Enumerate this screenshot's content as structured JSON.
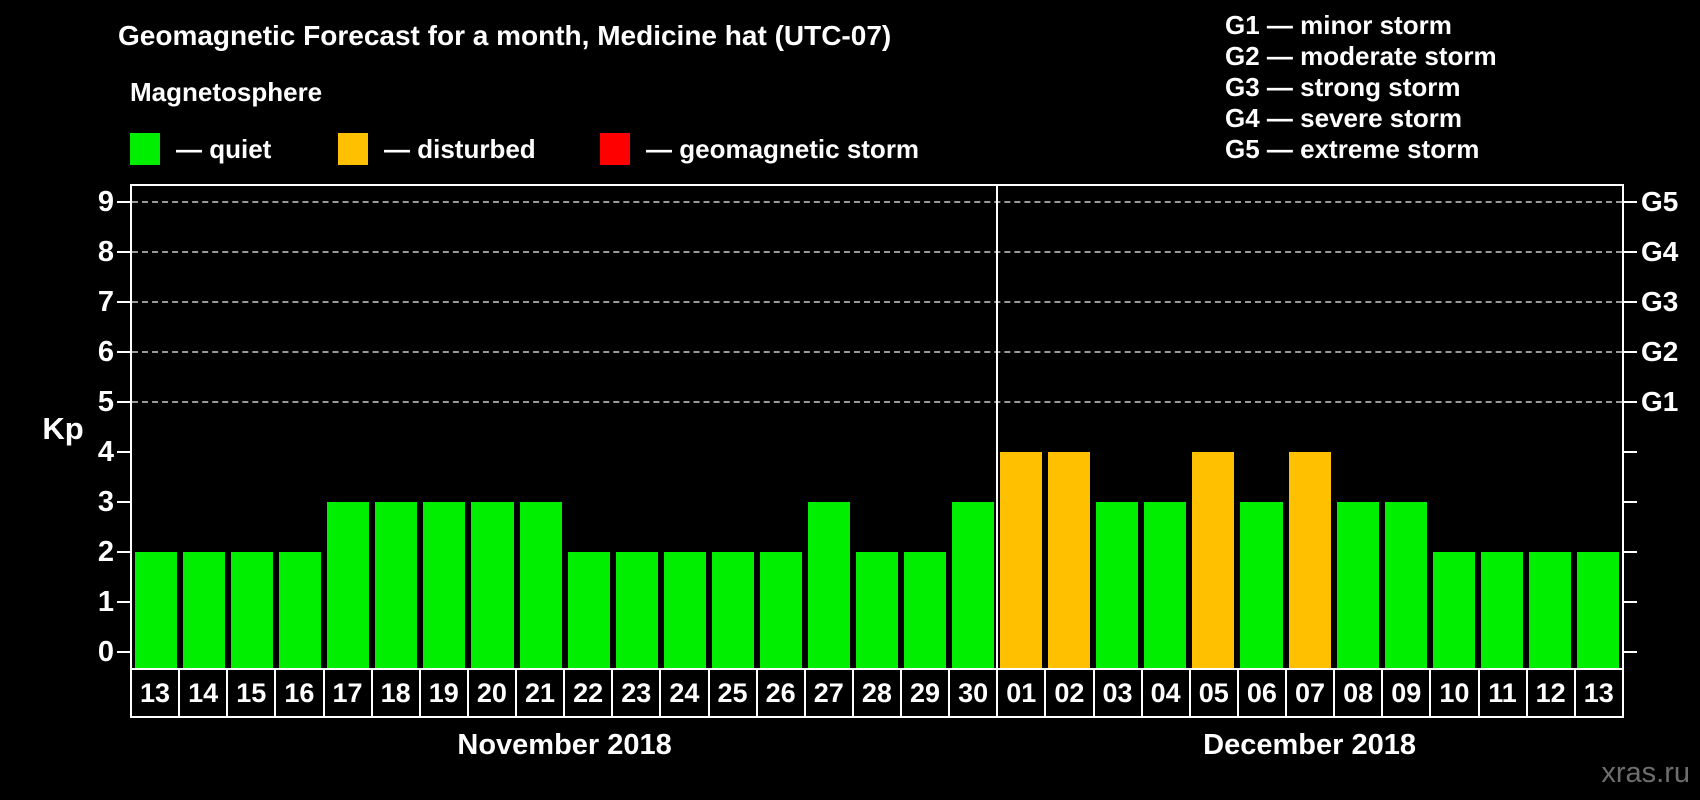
{
  "header": {
    "title": "Geomagnetic Forecast for a month, Medicine hat (UTC-07)",
    "subtitle": "Magnetosphere"
  },
  "legend": {
    "items": [
      {
        "key": "quiet",
        "label": "— quiet",
        "color": "#00ee00"
      },
      {
        "key": "disturbed",
        "label": "— disturbed",
        "color": "#ffc000"
      },
      {
        "key": "storm",
        "label": "— geomagnetic storm",
        "color": "#ff0000"
      }
    ]
  },
  "g_legend": {
    "lines": [
      "G1 — minor storm",
      "G2 — moderate storm",
      "G3 — strong storm",
      "G4 — severe storm",
      "G5 — extreme storm"
    ]
  },
  "watermark": "xras.ru",
  "chart_data": {
    "type": "bar",
    "title": "Geomagnetic Forecast for a month, Medicine hat (UTC-07)",
    "ylabel": "Kp",
    "ylim": [
      0,
      9.4
    ],
    "yticks": [
      0,
      1,
      2,
      3,
      4,
      5,
      6,
      7,
      8,
      9
    ],
    "gridlines": [
      5,
      6,
      7,
      8,
      9
    ],
    "grid": "dashed horizontal at G-storm levels",
    "legend_position": "top",
    "right_axis": [
      {
        "value": 5,
        "label": "G1"
      },
      {
        "value": 6,
        "label": "G2"
      },
      {
        "value": 7,
        "label": "G3"
      },
      {
        "value": 8,
        "label": "G4"
      },
      {
        "value": 9,
        "label": "G5"
      }
    ],
    "status_colors": {
      "quiet": "#00ee00",
      "disturbed": "#ffc000",
      "storm": "#ff0000"
    },
    "months": [
      {
        "label": "November 2018",
        "days": [
          {
            "day": "13",
            "kp": 2,
            "status": "quiet"
          },
          {
            "day": "14",
            "kp": 2,
            "status": "quiet"
          },
          {
            "day": "15",
            "kp": 2,
            "status": "quiet"
          },
          {
            "day": "16",
            "kp": 2,
            "status": "quiet"
          },
          {
            "day": "17",
            "kp": 3,
            "status": "quiet"
          },
          {
            "day": "18",
            "kp": 3,
            "status": "quiet"
          },
          {
            "day": "19",
            "kp": 3,
            "status": "quiet"
          },
          {
            "day": "20",
            "kp": 3,
            "status": "quiet"
          },
          {
            "day": "21",
            "kp": 3,
            "status": "quiet"
          },
          {
            "day": "22",
            "kp": 2,
            "status": "quiet"
          },
          {
            "day": "23",
            "kp": 2,
            "status": "quiet"
          },
          {
            "day": "24",
            "kp": 2,
            "status": "quiet"
          },
          {
            "day": "25",
            "kp": 2,
            "status": "quiet"
          },
          {
            "day": "26",
            "kp": 2,
            "status": "quiet"
          },
          {
            "day": "27",
            "kp": 3,
            "status": "quiet"
          },
          {
            "day": "28",
            "kp": 2,
            "status": "quiet"
          },
          {
            "day": "29",
            "kp": 2,
            "status": "quiet"
          },
          {
            "day": "30",
            "kp": 3,
            "status": "quiet"
          }
        ]
      },
      {
        "label": "December 2018",
        "days": [
          {
            "day": "01",
            "kp": 4,
            "status": "disturbed"
          },
          {
            "day": "02",
            "kp": 4,
            "status": "disturbed"
          },
          {
            "day": "03",
            "kp": 3,
            "status": "quiet"
          },
          {
            "day": "04",
            "kp": 3,
            "status": "quiet"
          },
          {
            "day": "05",
            "kp": 4,
            "status": "disturbed"
          },
          {
            "day": "06",
            "kp": 3,
            "status": "quiet"
          },
          {
            "day": "07",
            "kp": 4,
            "status": "disturbed"
          },
          {
            "day": "08",
            "kp": 3,
            "status": "quiet"
          },
          {
            "day": "09",
            "kp": 3,
            "status": "quiet"
          },
          {
            "day": "10",
            "kp": 2,
            "status": "quiet"
          },
          {
            "day": "11",
            "kp": 2,
            "status": "quiet"
          },
          {
            "day": "12",
            "kp": 2,
            "status": "quiet"
          },
          {
            "day": "13",
            "kp": 2,
            "status": "quiet"
          }
        ]
      }
    ]
  }
}
